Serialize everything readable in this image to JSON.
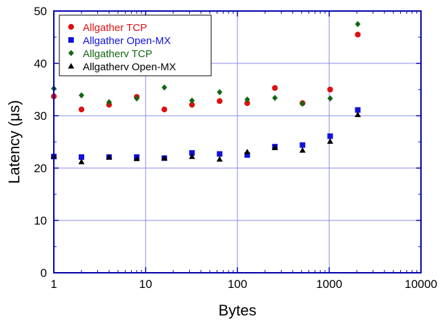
{
  "chart_data": {
    "type": "scatter",
    "xlabel": "Bytes",
    "ylabel": "Latency (μs)",
    "x_scale": "log",
    "xlim": [
      1,
      10000
    ],
    "ylim": [
      0,
      50
    ],
    "x_ticks": [
      1,
      10,
      100,
      1000,
      10000
    ],
    "x_tick_labels": [
      "1",
      "10",
      "100",
      "1000",
      "10000"
    ],
    "y_ticks": [
      0,
      10,
      20,
      30,
      40,
      50
    ],
    "y_tick_labels": [
      "0",
      "10",
      "20",
      "30",
      "40",
      "50"
    ],
    "grid": true,
    "legend_position": "top-left",
    "axis_color": "#0000aa",
    "grid_color": "#8888ee",
    "x": [
      1,
      2,
      4,
      8,
      16,
      32,
      64,
      128,
      256,
      512,
      1024,
      2048
    ],
    "series": [
      {
        "name": "Allgather TCP",
        "marker": "circle",
        "color": "#dd1111",
        "values": [
          33.7,
          31.2,
          32.1,
          33.6,
          31.2,
          32.1,
          32.8,
          32.4,
          35.3,
          32.4,
          35.0,
          45.5
        ]
      },
      {
        "name": "Allgather Open-MX",
        "marker": "square",
        "color": "#1111dd",
        "values": [
          22.2,
          22.1,
          22.1,
          22.1,
          21.9,
          22.9,
          22.7,
          22.5,
          24.1,
          24.4,
          26.1,
          31.1
        ]
      },
      {
        "name": "Allgatherv TCP",
        "marker": "diamond",
        "color": "#116611",
        "values": [
          35.2,
          33.9,
          32.6,
          33.3,
          35.4,
          32.9,
          34.5,
          33.1,
          33.4,
          32.3,
          33.3,
          47.5
        ]
      },
      {
        "name": "Allgatherv Open-MX",
        "marker": "triangle",
        "color": "#000000",
        "values": [
          22.3,
          21.2,
          22.1,
          21.8,
          21.9,
          22.2,
          21.7,
          23.1,
          23.9,
          23.4,
          25.1,
          30.2
        ]
      }
    ]
  }
}
